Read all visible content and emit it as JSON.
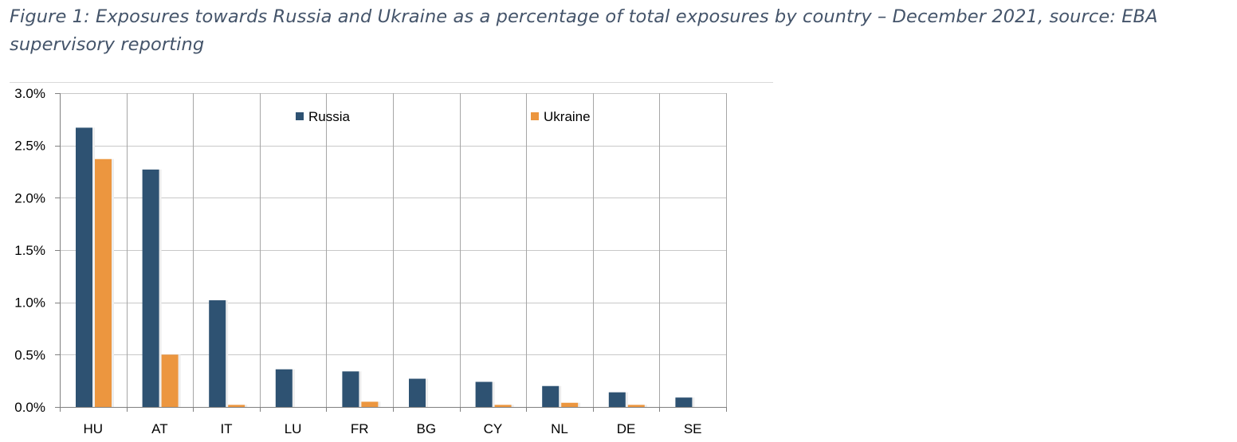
{
  "figure": {
    "caption": "Figure 1: Exposures towards Russia and Ukraine as a percentage of total exposures by country – December 2021, source: EBA supervisory reporting"
  },
  "chart_data": {
    "type": "bar",
    "title": "",
    "xlabel": "",
    "ylabel": "",
    "categories": [
      "HU",
      "AT",
      "IT",
      "LU",
      "FR",
      "BG",
      "CY",
      "NL",
      "DE",
      "SE"
    ],
    "series": [
      {
        "name": "Russia",
        "color": "#2e5272",
        "values": [
          2.67,
          2.27,
          1.02,
          0.36,
          0.34,
          0.27,
          0.24,
          0.2,
          0.14,
          0.09
        ]
      },
      {
        "name": "Ukraine",
        "color": "#ec963f",
        "values": [
          2.37,
          0.5,
          0.02,
          0.0,
          0.05,
          0.0,
          0.02,
          0.04,
          0.02,
          0.0
        ]
      }
    ],
    "ylim": [
      0,
      3.0
    ],
    "yticks": [
      0,
      0.5,
      1.0,
      1.5,
      2.0,
      2.5,
      3.0
    ],
    "ytick_labels": [
      "0.0%",
      "0.5%",
      "1.0%",
      "1.5%",
      "2.0%",
      "2.5%",
      "3.0%"
    ],
    "grid": true,
    "legend": "top, inside plot area"
  }
}
